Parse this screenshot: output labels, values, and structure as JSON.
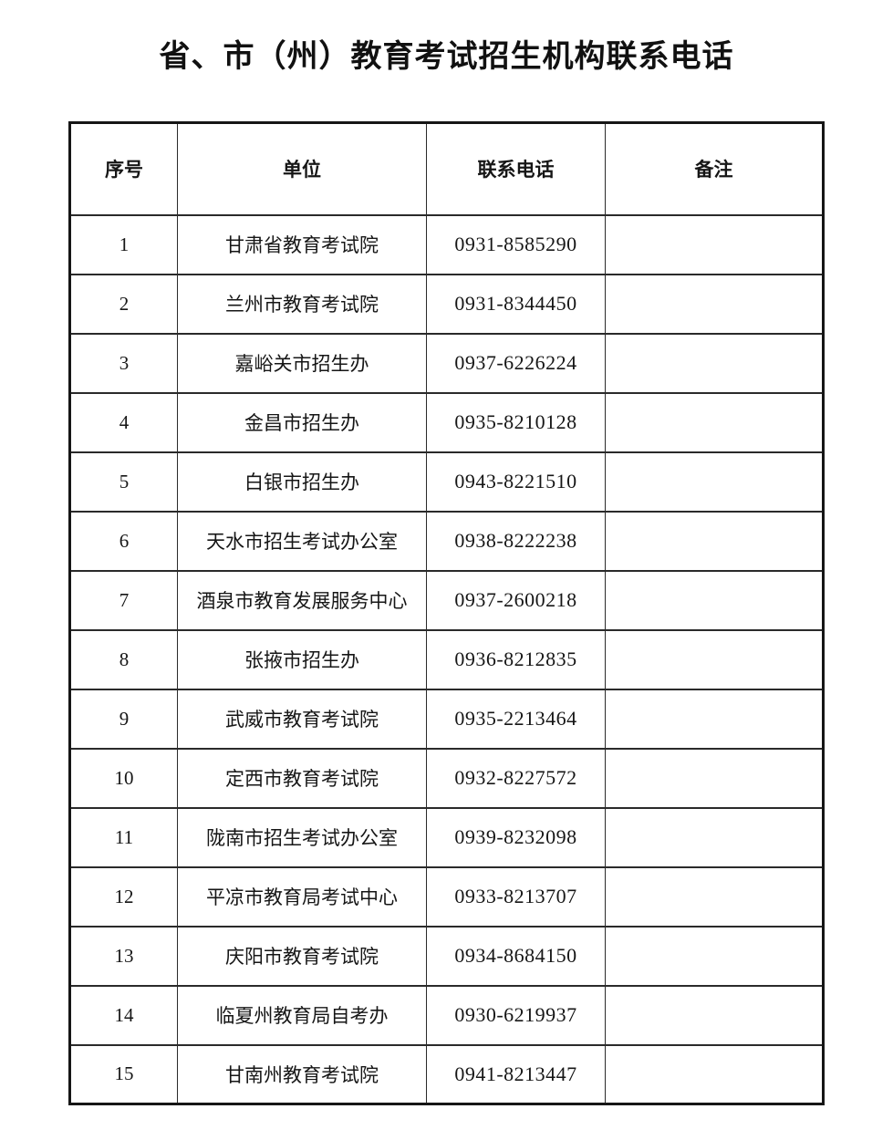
{
  "page": {
    "title": "省、市（州）教育考试招生机构联系电话"
  },
  "table": {
    "headers": {
      "no": "序号",
      "unit": "单位",
      "phone": "联系电话",
      "remark": "备注"
    },
    "rows": [
      {
        "no": "1",
        "unit": "甘肃省教育考试院",
        "phone": "0931-8585290",
        "remark": ""
      },
      {
        "no": "2",
        "unit": "兰州市教育考试院",
        "phone": "0931-8344450",
        "remark": ""
      },
      {
        "no": "3",
        "unit": "嘉峪关市招生办",
        "phone": "0937-6226224",
        "remark": ""
      },
      {
        "no": "4",
        "unit": "金昌市招生办",
        "phone": "0935-8210128",
        "remark": ""
      },
      {
        "no": "5",
        "unit": "白银市招生办",
        "phone": "0943-8221510",
        "remark": ""
      },
      {
        "no": "6",
        "unit": "天水市招生考试办公室",
        "phone": "0938-8222238",
        "remark": ""
      },
      {
        "no": "7",
        "unit": "酒泉市教育发展服务中心",
        "phone": "0937-2600218",
        "remark": ""
      },
      {
        "no": "8",
        "unit": "张掖市招生办",
        "phone": "0936-8212835",
        "remark": ""
      },
      {
        "no": "9",
        "unit": "武威市教育考试院",
        "phone": "0935-2213464",
        "remark": ""
      },
      {
        "no": "10",
        "unit": "定西市教育考试院",
        "phone": "0932-8227572",
        "remark": ""
      },
      {
        "no": "11",
        "unit": "陇南市招生考试办公室",
        "phone": "0939-8232098",
        "remark": ""
      },
      {
        "no": "12",
        "unit": "平凉市教育局考试中心",
        "phone": "0933-8213707",
        "remark": ""
      },
      {
        "no": "13",
        "unit": "庆阳市教育考试院",
        "phone": "0934-8684150",
        "remark": ""
      },
      {
        "no": "14",
        "unit": "临夏州教育局自考办",
        "phone": "0930-6219937",
        "remark": ""
      },
      {
        "no": "15",
        "unit": "甘南州教育考试院",
        "phone": "0941-8213447",
        "remark": ""
      }
    ]
  }
}
